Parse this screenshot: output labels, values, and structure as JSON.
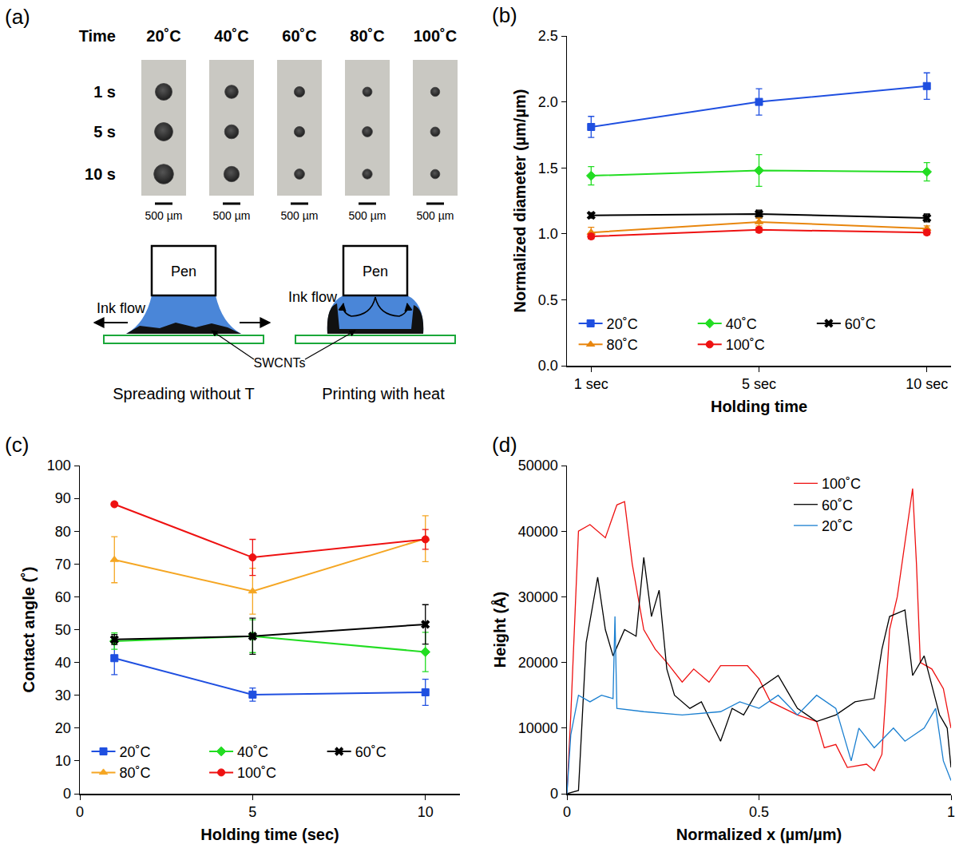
{
  "panel_a": {
    "letter": "(a)",
    "header": "Time",
    "columns": [
      "20˚C",
      "40˚C",
      "60˚C",
      "80˚C",
      "100˚C"
    ],
    "rows": [
      "1 s",
      "5 s",
      "10 s"
    ],
    "dot_diameters_um": [
      [
        480,
        380,
        300,
        270,
        260
      ],
      [
        520,
        400,
        300,
        290,
        270
      ],
      [
        560,
        440,
        290,
        280,
        265
      ]
    ],
    "scale_bar": {
      "value": 500,
      "label": "500 µm"
    },
    "schematic": {
      "pen": "Pen",
      "ink_flow": "Ink flow",
      "substrate_label": "SWCNTs",
      "captions": [
        "Spreading without T",
        "Printing with heat"
      ]
    }
  },
  "chart_data": [
    {
      "letter": "(b)",
      "type": "line",
      "x_label": "Holding time",
      "y_label": "Normalized diameter (µm/µm)",
      "categories": [
        "1 sec",
        "5 sec",
        "10 sec"
      ],
      "ylim": [
        0,
        2.5
      ],
      "yticks": [
        {
          "value": 0,
          "label": "0.0"
        },
        {
          "value": 0.5,
          "label": "0.5"
        },
        {
          "value": 1,
          "label": "1.0"
        },
        {
          "value": 1.5,
          "label": "1.5"
        },
        {
          "value": 2,
          "label": "2.0"
        },
        {
          "value": 2.5,
          "label": "2.5"
        }
      ],
      "grid": false,
      "legend": "bottom",
      "series": [
        {
          "name": "20˚C",
          "color": "#1f4fe0",
          "marker": "square",
          "values": [
            1.81,
            2.0,
            2.12
          ],
          "errors": [
            0.08,
            0.1,
            0.1
          ]
        },
        {
          "name": "40˚C",
          "color": "#22dd22",
          "marker": "diamond",
          "values": [
            1.44,
            1.48,
            1.47
          ],
          "errors": [
            0.07,
            0.12,
            0.07
          ]
        },
        {
          "name": "60˚C",
          "color": "#000000",
          "marker": "x",
          "values": [
            1.14,
            1.15,
            1.12
          ],
          "errors": [
            0.02,
            0.03,
            0.03
          ]
        },
        {
          "name": "80˚C",
          "color": "#e8860e",
          "marker": "triangle-up",
          "values": [
            1.01,
            1.09,
            1.04
          ],
          "errors": [
            0.04,
            0.03,
            0.02
          ]
        },
        {
          "name": "100˚C",
          "color": "#ee1111",
          "marker": "circle",
          "values": [
            0.98,
            1.03,
            1.01
          ],
          "errors": [
            0.02,
            0.02,
            0.02
          ]
        }
      ]
    },
    {
      "letter": "(c)",
      "type": "line",
      "x_label": "Holding time (sec)",
      "y_label": "Contact angle (˚)",
      "x": [
        1,
        5,
        10
      ],
      "xlim": [
        0,
        11
      ],
      "xticks": [
        0,
        5,
        10
      ],
      "ylim": [
        0,
        100
      ],
      "yticks": [
        0,
        10,
        20,
        30,
        40,
        50,
        60,
        70,
        80,
        90,
        100
      ],
      "grid": false,
      "legend": "bottom",
      "series": [
        {
          "name": "20˚C",
          "color": "#1f4fe0",
          "marker": "square",
          "values": [
            41.3,
            30.2,
            30.9
          ],
          "errors": [
            5,
            2,
            4
          ]
        },
        {
          "name": "40˚C",
          "color": "#22dd22",
          "marker": "diamond",
          "values": [
            46.5,
            48,
            43.2
          ],
          "errors": [
            2.5,
            5,
            6
          ]
        },
        {
          "name": "60˚C",
          "color": "#000000",
          "marker": "x",
          "values": [
            47,
            48,
            51.6
          ],
          "errors": [
            1.5,
            5.5,
            6
          ]
        },
        {
          "name": "80˚C",
          "color": "#f5a623",
          "marker": "triangle-up",
          "values": [
            71.3,
            61.7,
            77.7
          ],
          "errors": [
            7,
            7,
            7
          ]
        },
        {
          "name": "100˚C",
          "color": "#ee1111",
          "marker": "circle",
          "values": [
            88.2,
            72,
            77.5
          ],
          "errors": [
            0.5,
            5.5,
            3
          ]
        }
      ]
    },
    {
      "letter": "(d)",
      "type": "line",
      "x_label": "Normalized x (µm/µm)",
      "y_label": "Height (Å)",
      "xlim": [
        0,
        1
      ],
      "xticks": [
        0,
        0.5,
        1
      ],
      "ylim": [
        0,
        50000
      ],
      "yticks": [
        0,
        10000,
        20000,
        30000,
        40000,
        50000
      ],
      "grid": false,
      "legend": "top right",
      "series": [
        {
          "name": "100˚C",
          "color": "#ee1111",
          "x": [
            0,
            0.01,
            0.03,
            0.06,
            0.1,
            0.13,
            0.15,
            0.17,
            0.2,
            0.23,
            0.26,
            0.3,
            0.33,
            0.37,
            0.4,
            0.47,
            0.5,
            0.53,
            0.6,
            0.65,
            0.67,
            0.7,
            0.73,
            0.78,
            0.8,
            0.82,
            0.83,
            0.84,
            0.86,
            0.88,
            0.9,
            0.91,
            0.92,
            0.95,
            0.98,
            1.0
          ],
          "values": [
            0,
            12000,
            40000,
            41000,
            39000,
            44000,
            44500,
            35000,
            25000,
            22000,
            20000,
            17000,
            19000,
            17000,
            19500,
            19500,
            17500,
            14000,
            12000,
            11000,
            7000,
            7500,
            4000,
            4500,
            3500,
            6000,
            15000,
            25000,
            30000,
            38000,
            46500,
            35000,
            20000,
            19000,
            16000,
            10000
          ]
        },
        {
          "name": "60˚C",
          "color": "#000000",
          "x": [
            0,
            0.03,
            0.05,
            0.08,
            0.1,
            0.12,
            0.15,
            0.18,
            0.2,
            0.22,
            0.24,
            0.26,
            0.28,
            0.32,
            0.35,
            0.4,
            0.43,
            0.46,
            0.5,
            0.55,
            0.58,
            0.6,
            0.65,
            0.7,
            0.75,
            0.8,
            0.82,
            0.84,
            0.88,
            0.9,
            0.93,
            0.97,
            0.99,
            1.0
          ],
          "values": [
            0,
            500,
            23000,
            33000,
            25000,
            21000,
            25000,
            24000,
            36000,
            27000,
            31000,
            19000,
            15000,
            13000,
            14000,
            8000,
            13000,
            12000,
            16000,
            18000,
            15000,
            13000,
            11000,
            12000,
            14000,
            14500,
            22000,
            27000,
            28000,
            18000,
            21000,
            12000,
            10000,
            4000
          ]
        },
        {
          "name": "20˚C",
          "color": "#1a7fd0",
          "x": [
            0,
            0.01,
            0.03,
            0.06,
            0.09,
            0.12,
            0.125,
            0.13,
            0.2,
            0.3,
            0.4,
            0.45,
            0.5,
            0.55,
            0.6,
            0.65,
            0.7,
            0.74,
            0.76,
            0.8,
            0.85,
            0.88,
            0.93,
            0.96,
            0.98,
            1.0
          ],
          "values": [
            0,
            9000,
            15000,
            14000,
            15000,
            14500,
            27000,
            13000,
            12500,
            12000,
            12500,
            14000,
            13000,
            15000,
            12000,
            15000,
            13000,
            5000,
            10000,
            7000,
            10000,
            8000,
            10000,
            13000,
            5000,
            2000
          ]
        }
      ]
    }
  ]
}
